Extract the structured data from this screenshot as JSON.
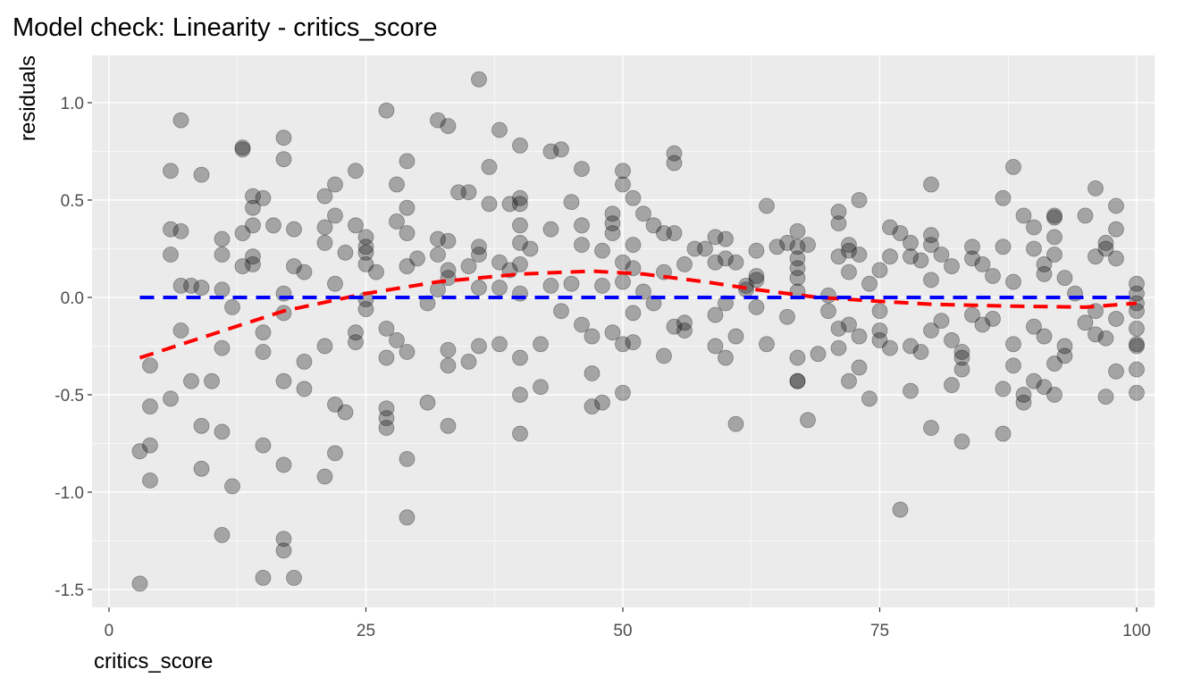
{
  "chart_data": {
    "type": "scatter",
    "title": "Model check: Linearity - critics_score",
    "x_label": "critics_score",
    "y_label": "residuals",
    "xlim": [
      -1.65,
      101.74
    ],
    "ylim": [
      -1.592,
      1.243
    ],
    "xticks": [
      0,
      25,
      50,
      75,
      100
    ],
    "yticks": [
      {
        "value": -1.5,
        "label": "-1.5"
      },
      {
        "value": -1,
        "label": "-1.0"
      },
      -0.5,
      {
        "value": 0,
        "label": "0.0"
      },
      0.5,
      {
        "value": 1,
        "label": "1.0"
      }
    ],
    "grid": true,
    "color": "#000000",
    "x": [
      3,
      3,
      4,
      4,
      4,
      4,
      6,
      6,
      6,
      6,
      7,
      7,
      7,
      7,
      8,
      8,
      9,
      9,
      9,
      9,
      10,
      11,
      11,
      11,
      11,
      11,
      11,
      12,
      12,
      13,
      13,
      13,
      13,
      14,
      14,
      14,
      14,
      14,
      15,
      15,
      15,
      15,
      15,
      16,
      17,
      17,
      17,
      17,
      17,
      17,
      17,
      17,
      18,
      18,
      18,
      19,
      19,
      19,
      21,
      21,
      21,
      21,
      21,
      22,
      22,
      22,
      22,
      22,
      23,
      23,
      24,
      24,
      24,
      24,
      25,
      25,
      25,
      25,
      25,
      25,
      26,
      27,
      27,
      27,
      27,
      27,
      27,
      28,
      28,
      28,
      29,
      29,
      29,
      29,
      29,
      29,
      29,
      30,
      31,
      31,
      32,
      32,
      32,
      32,
      33,
      33,
      33,
      33,
      33,
      33,
      33,
      34,
      35,
      35,
      35,
      36,
      36,
      36,
      36,
      36,
      37,
      37,
      38,
      38,
      38,
      38,
      39,
      39,
      40,
      40,
      40,
      40,
      40,
      40,
      40,
      40,
      40,
      40,
      41,
      42,
      42,
      43,
      43,
      43,
      44,
      44,
      45,
      45,
      46,
      46,
      46,
      46,
      47,
      47,
      47,
      48,
      48,
      48,
      49,
      49,
      49,
      49,
      50,
      50,
      50,
      50,
      50,
      50,
      51,
      51,
      51,
      51,
      51,
      52,
      52,
      53,
      53,
      54,
      54,
      54,
      55,
      55,
      55,
      55,
      56,
      56,
      56,
      57,
      58,
      59,
      59,
      59,
      59,
      60,
      60,
      60,
      60,
      61,
      61,
      61,
      62,
      62,
      63,
      63,
      63,
      63,
      64,
      64,
      65,
      66,
      66,
      67,
      67,
      67,
      67,
      67,
      67,
      67,
      67,
      67,
      68,
      68,
      69,
      70,
      70,
      71,
      71,
      71,
      71,
      71,
      72,
      72,
      72,
      72,
      72,
      73,
      73,
      73,
      73,
      74,
      74,
      75,
      75,
      75,
      75,
      76,
      76,
      76,
      77,
      77,
      78,
      78,
      78,
      78,
      79,
      79,
      80,
      80,
      80,
      80,
      80,
      80,
      81,
      81,
      82,
      82,
      82,
      83,
      83,
      83,
      83,
      84,
      84,
      84,
      85,
      85,
      86,
      86,
      87,
      87,
      87,
      87,
      88,
      88,
      88,
      88,
      89,
      89,
      89,
      90,
      90,
      90,
      90,
      91,
      91,
      91,
      91,
      92,
      92,
      92,
      92,
      92,
      92,
      93,
      93,
      93,
      94,
      95,
      95,
      96,
      96,
      96,
      96,
      97,
      97,
      97,
      97,
      98,
      98,
      98,
      98,
      98,
      100,
      100,
      100,
      100,
      100,
      100,
      100,
      100,
      100
    ],
    "values": [
      -1.47,
      -0.79,
      -0.76,
      -0.94,
      -0.56,
      -0.35,
      0.65,
      0.35,
      0.22,
      -0.52,
      0.91,
      0.34,
      0.06,
      -0.17,
      0.06,
      -0.43,
      0.63,
      0.05,
      -0.66,
      -0.88,
      -0.43,
      0.3,
      0.22,
      0.04,
      -0.26,
      -0.69,
      -1.22,
      -0.05,
      -0.97,
      0.77,
      0.76,
      0.33,
      0.16,
      0.52,
      0.46,
      0.37,
      0.21,
      0.17,
      0.51,
      -0.18,
      -0.28,
      -0.76,
      -1.44,
      0.37,
      0.82,
      0.71,
      0.02,
      -0.08,
      -0.43,
      -0.86,
      -1.24,
      -1.3,
      0.35,
      0.16,
      -1.44,
      0.13,
      -0.33,
      -0.47,
      0.52,
      0.36,
      0.28,
      -0.25,
      -0.92,
      0.58,
      0.42,
      0.07,
      -0.55,
      -0.8,
      0.23,
      -0.59,
      0.65,
      0.37,
      -0.18,
      -0.23,
      0.31,
      0.26,
      0.23,
      0.17,
      -0.01,
      -0.06,
      0.13,
      0.96,
      -0.16,
      -0.31,
      -0.57,
      -0.62,
      -0.67,
      0.58,
      0.39,
      -0.22,
      0.7,
      0.46,
      0.33,
      0.16,
      -0.28,
      -0.83,
      -1.13,
      0.2,
      -0.03,
      -0.54,
      0.91,
      0.3,
      0.22,
      0.04,
      0.88,
      0.29,
      0.14,
      0.1,
      -0.27,
      -0.35,
      -0.66,
      0.54,
      0.54,
      0.16,
      -0.33,
      1.12,
      0.26,
      0.22,
      0.05,
      -0.25,
      0.67,
      0.48,
      0.86,
      0.18,
      0.05,
      -0.24,
      0.48,
      0.14,
      0.78,
      0.51,
      0.48,
      0.37,
      0.28,
      0.17,
      0.02,
      -0.31,
      -0.5,
      -0.7,
      0.25,
      -0.24,
      -0.46,
      0.75,
      0.35,
      0.06,
      0.76,
      -0.07,
      0.49,
      0.07,
      0.66,
      0.37,
      0.27,
      -0.14,
      -0.2,
      -0.39,
      -0.56,
      0.24,
      0.06,
      -0.54,
      0.43,
      0.38,
      0.33,
      -0.18,
      0.65,
      0.58,
      0.18,
      0.08,
      -0.24,
      -0.49,
      0.51,
      0.27,
      0.15,
      -0.08,
      -0.23,
      0.43,
      0.03,
      0.37,
      -0.03,
      0.33,
      0.13,
      -0.3,
      0.74,
      0.69,
      0.33,
      -0.15,
      0.17,
      -0.13,
      -0.17,
      0.25,
      0.25,
      0.31,
      0.18,
      -0.09,
      -0.25,
      0.3,
      0.2,
      -0.03,
      -0.31,
      0.18,
      -0.2,
      -0.65,
      0.06,
      0.04,
      0.24,
      0.11,
      0.09,
      -0.05,
      0.47,
      -0.24,
      0.26,
      0.28,
      -0.1,
      0.34,
      0.26,
      0.2,
      0.15,
      0.1,
      0.03,
      -0.31,
      -0.43,
      -0.43,
      0.27,
      -0.63,
      -0.29,
      0.01,
      -0.07,
      0.44,
      0.38,
      0.21,
      -0.16,
      -0.26,
      0.27,
      0.24,
      0.13,
      -0.14,
      -0.43,
      0.5,
      0.22,
      -0.2,
      -0.36,
      0.07,
      -0.52,
      0.14,
      -0.07,
      -0.17,
      -0.22,
      0.36,
      0.21,
      -0.26,
      0.33,
      -1.09,
      0.28,
      0.21,
      -0.25,
      -0.48,
      0.19,
      -0.28,
      0.58,
      0.32,
      0.27,
      0.09,
      -0.17,
      -0.67,
      0.22,
      -0.12,
      0.16,
      -0.22,
      -0.45,
      -0.28,
      -0.31,
      -0.37,
      -0.74,
      0.26,
      0.2,
      -0.09,
      0.17,
      -0.14,
      0.11,
      -0.11,
      0.51,
      0.26,
      -0.47,
      -0.7,
      0.67,
      0.08,
      -0.24,
      -0.35,
      -0.5,
      -0.54,
      0.42,
      0.36,
      0.25,
      -0.15,
      -0.43,
      0.17,
      0.12,
      -0.2,
      -0.46,
      0.42,
      0.41,
      0.31,
      0.22,
      -0.34,
      -0.5,
      0.1,
      -0.25,
      -0.3,
      0.02,
      0.42,
      -0.13,
      0.56,
      0.21,
      -0.07,
      -0.19,
      0.28,
      0.25,
      -0.21,
      -0.51,
      0.47,
      0.35,
      0.2,
      -0.11,
      -0.38,
      0.07,
      0.02,
      -0.03,
      -0.07,
      -0.16,
      -0.24,
      -0.25,
      -0.37,
      -0.49
    ],
    "lines": [
      {
        "type": "line",
        "color": "#ff0000",
        "x": [
          3,
          10,
          17,
          25,
          32,
          40,
          47,
          52,
          58,
          63,
          69,
          75,
          80,
          88,
          95,
          100
        ],
        "values": [
          -0.31,
          -0.19,
          -0.07,
          0.02,
          0.08,
          0.12,
          0.135,
          0.12,
          0.08,
          0.04,
          0.0,
          -0.02,
          -0.035,
          -0.045,
          -0.05,
          -0.03
        ]
      },
      {
        "type": "line",
        "color": "#0000ff",
        "x": [
          3,
          100
        ],
        "values": [
          0,
          0
        ]
      }
    ]
  }
}
